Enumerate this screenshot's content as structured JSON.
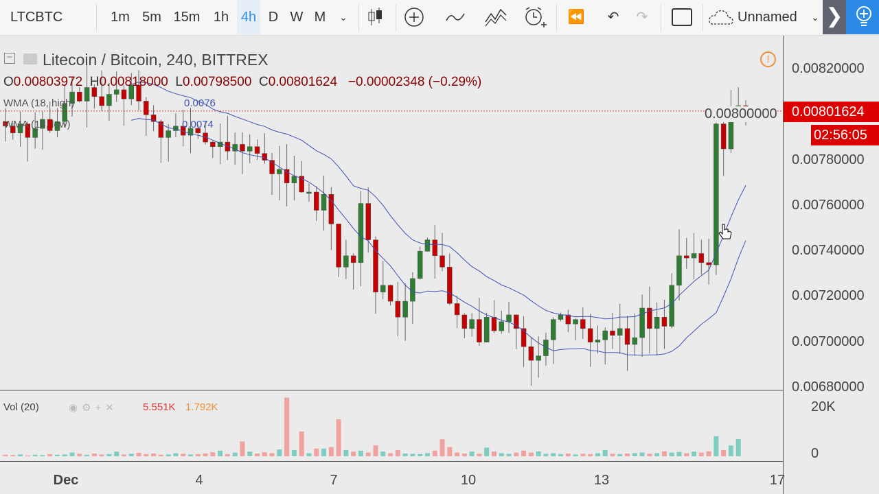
{
  "toolbar": {
    "symbol": "LTCBTC",
    "intervals": [
      "1m",
      "5m",
      "15m",
      "1h",
      "4h",
      "D",
      "W",
      "M"
    ],
    "active_interval": "4h",
    "layout_name": "Unnamed",
    "icons": [
      "chevron-down-icon",
      "candles-icon",
      "add-indicator-icon",
      "compare-icon",
      "indicators-icon",
      "alert-icon",
      "replay-icon",
      "undo-icon",
      "redo-icon",
      "fullscreen-icon",
      "cloud-icon",
      "chevron-right-icon",
      "lightbulb-plus-icon"
    ]
  },
  "legend": {
    "title": "Litecoin / Bitcoin, 240, BITTREX",
    "o_label": "O",
    "o": "0.00803972",
    "h_label": "H",
    "h": "0.00818000",
    "l_label": "L",
    "l": "0.00798500",
    "c_label": "C",
    "c": "0.00801624",
    "change": "−0.00002348 (−0.29%)",
    "wma_high": "WMA (18, high)",
    "wma_high_value": "0.0076",
    "wma_low": "WMA (18, low)",
    "wma_low_value": "0.0074",
    "vol": "Vol (20)",
    "vol_value": "5.551K",
    "vol_ma_value": "1.792K"
  },
  "price_axis": {
    "labels": [
      "0.00820000",
      "0.00800000",
      "0.00780000",
      "0.00760000",
      "0.00740000",
      "0.00720000",
      "0.00700000",
      "0.00680000"
    ],
    "last_price": "0.00801624",
    "countdown": "02:56:05"
  },
  "volume_axis": {
    "labels": [
      "20K",
      "0"
    ]
  },
  "time_axis": {
    "labels": [
      "Dec",
      "4",
      "7",
      "10",
      "13",
      "17"
    ]
  },
  "colors": {
    "up": "#2e7d32",
    "down": "#c40000",
    "wma": "#3f51b5",
    "accent": "#2a8ae6",
    "last_price_tag": "#d00000"
  },
  "chart_data": {
    "type": "candlestick",
    "interval": "240",
    "ylim": [
      0.0068,
      0.0082
    ],
    "closes": [
      0.00795,
      0.00792,
      0.00796,
      0.0079,
      0.00794,
      0.00798,
      0.00793,
      0.00797,
      0.00805,
      0.0081,
      0.00806,
      0.00812,
      0.00808,
      0.00804,
      0.00809,
      0.00811,
      0.00807,
      0.00813,
      0.00806,
      0.008,
      0.00797,
      0.0079,
      0.00793,
      0.00795,
      0.00791,
      0.00794,
      0.00792,
      0.00788,
      0.00786,
      0.00788,
      0.00784,
      0.00787,
      0.00784,
      0.00786,
      0.00783,
      0.0078,
      0.00774,
      0.00776,
      0.0077,
      0.00773,
      0.00766,
      0.00766,
      0.00758,
      0.00765,
      0.00752,
      0.00733,
      0.00738,
      0.00735,
      0.00761,
      0.00745,
      0.00722,
      0.00725,
      0.00718,
      0.00711,
      0.00718,
      0.00728,
      0.0074,
      0.00745,
      0.00738,
      0.00733,
      0.00717,
      0.00712,
      0.00706,
      0.0071,
      0.007,
      0.00711,
      0.00705,
      0.00709,
      0.00712,
      0.00706,
      0.00698,
      0.00692,
      0.00694,
      0.00701,
      0.0071,
      0.00712,
      0.00708,
      0.0071,
      0.00706,
      0.007,
      0.00701,
      0.00705,
      0.00703,
      0.00706,
      0.00699,
      0.00702,
      0.00715,
      0.00706,
      0.00711,
      0.00707,
      0.00725,
      0.00738,
      0.00737,
      0.00739,
      0.00735,
      0.00734,
      0.00796,
      0.00785,
      0.00803,
      0.00804,
      0.00801624
    ],
    "volumes_k": [
      0.5,
      0.4,
      0.6,
      0.3,
      0.5,
      0.4,
      0.7,
      0.5,
      0.6,
      1.2,
      0.8,
      0.5,
      0.9,
      0.6,
      0.7,
      1.5,
      0.6,
      0.8,
      1.1,
      0.7,
      0.9,
      0.5,
      0.6,
      1.0,
      0.8,
      0.6,
      0.7,
      0.9,
      1.3,
      1.8,
      0.7,
      1.2,
      4.8,
      1.5,
      0.9,
      1.3,
      1.0,
      2.2,
      19.0,
      2.0,
      8.0,
      1.0,
      2.5,
      2.5,
      3.0,
      12.0,
      2.0,
      1.5,
      1.8,
      1.2,
      3.5,
      1.5,
      1.0,
      2.0,
      0.9,
      0.8,
      0.7,
      1.0,
      1.8,
      5.5,
      3.0,
      1.2,
      0.9,
      1.5,
      0.8,
      2.8,
      1.5,
      1.0,
      0.8,
      1.2,
      1.8,
      1.2,
      1.6,
      0.8,
      1.0,
      0.7,
      0.9,
      0.6,
      0.8,
      0.7,
      1.0,
      2.0,
      0.8,
      0.7,
      0.9,
      1.0,
      1.2,
      0.8,
      1.0,
      1.6,
      1.2,
      1.4,
      1.0,
      1.5,
      1.2,
      1.6,
      6.5,
      2.0,
      3.5,
      5.551
    ]
  }
}
